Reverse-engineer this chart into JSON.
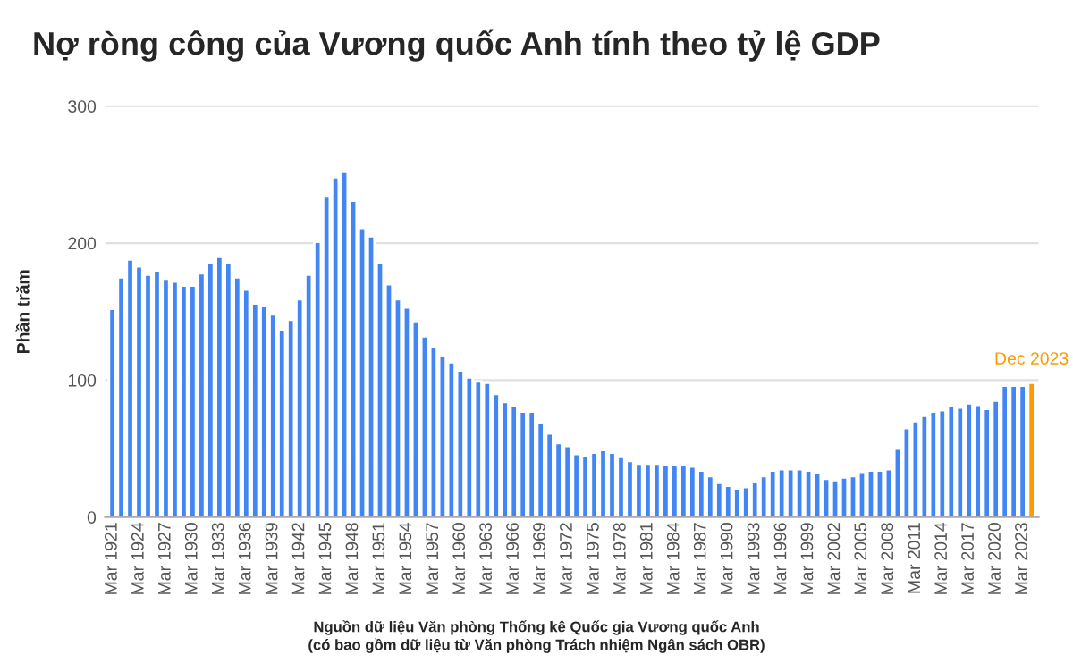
{
  "chart_data": {
    "type": "bar",
    "title": "Nợ ròng công của Vương quốc Anh tính theo tỷ lệ GDP",
    "ylabel": "Phần trăm",
    "categories": [
      "Mar 1921",
      null,
      null,
      "Mar 1924",
      null,
      null,
      "Mar 1927",
      null,
      null,
      "Mar 1930",
      null,
      null,
      "Mar 1933",
      null,
      null,
      "Mar 1936",
      null,
      null,
      "Mar 1939",
      null,
      null,
      "Mar 1942",
      null,
      null,
      "Mar 1945",
      null,
      null,
      "Mar 1948",
      null,
      null,
      "Mar 1951",
      null,
      null,
      "Mar 1954",
      null,
      null,
      "Mar 1957",
      null,
      null,
      "Mar 1960",
      null,
      null,
      "Mar 1963",
      null,
      null,
      "Mar 1966",
      null,
      null,
      "Mar 1969",
      null,
      null,
      "Mar 1972",
      null,
      null,
      "Mar 1975",
      null,
      null,
      "Mar 1978",
      null,
      null,
      "Mar 1981",
      null,
      null,
      "Mar 1984",
      null,
      null,
      "Mar 1987",
      null,
      null,
      "Mar 1990",
      null,
      null,
      "Mar 1993",
      null,
      null,
      "Mar 1996",
      null,
      null,
      "Mar 1999",
      null,
      null,
      "Mar 2002",
      null,
      null,
      "Mar 2005",
      null,
      null,
      "Mar 2008",
      null,
      null,
      "Mar 2011",
      null,
      null,
      "Mar 2014",
      null,
      null,
      "Mar 2017",
      null,
      null,
      "Mar 2020",
      null,
      null,
      "Mar 2023",
      null
    ],
    "values": [
      152,
      175,
      188,
      183,
      177,
      180,
      174,
      172,
      169,
      169,
      178,
      186,
      190,
      186,
      175,
      166,
      156,
      154,
      148,
      137,
      144,
      159,
      177,
      201,
      234,
      248,
      252,
      231,
      211,
      205,
      186,
      170,
      159,
      153,
      143,
      132,
      124,
      118,
      113,
      107,
      102,
      99,
      98,
      90,
      84,
      81,
      77,
      77,
      69,
      61,
      54,
      52,
      46,
      45,
      47,
      49,
      47,
      44,
      41,
      39,
      39,
      39,
      38,
      38,
      38,
      37,
      34,
      30,
      25,
      23,
      21,
      22,
      26,
      30,
      34,
      35,
      35,
      35,
      34,
      32,
      28,
      27,
      29,
      30,
      33,
      34,
      34,
      35,
      50,
      65,
      70,
      74,
      77,
      78,
      81,
      80,
      83,
      82,
      79,
      85,
      96,
      96,
      96,
      98
    ],
    "colors": [
      "#4285f4",
      "#4285f4",
      "#4285f4",
      "#4285f4",
      "#4285f4",
      "#4285f4",
      "#4285f4",
      "#4285f4",
      "#4285f4",
      "#4285f4",
      "#4285f4",
      "#4285f4",
      "#4285f4",
      "#4285f4",
      "#4285f4",
      "#4285f4",
      "#4285f4",
      "#4285f4",
      "#4285f4",
      "#4285f4",
      "#4285f4",
      "#4285f4",
      "#4285f4",
      "#4285f4",
      "#4285f4",
      "#4285f4",
      "#4285f4",
      "#4285f4",
      "#4285f4",
      "#4285f4",
      "#4285f4",
      "#4285f4",
      "#4285f4",
      "#4285f4",
      "#4285f4",
      "#4285f4",
      "#4285f4",
      "#4285f4",
      "#4285f4",
      "#4285f4",
      "#4285f4",
      "#4285f4",
      "#4285f4",
      "#4285f4",
      "#4285f4",
      "#4285f4",
      "#4285f4",
      "#4285f4",
      "#4285f4",
      "#4285f4",
      "#4285f4",
      "#4285f4",
      "#4285f4",
      "#4285f4",
      "#4285f4",
      "#4285f4",
      "#4285f4",
      "#4285f4",
      "#4285f4",
      "#4285f4",
      "#4285f4",
      "#4285f4",
      "#4285f4",
      "#4285f4",
      "#4285f4",
      "#4285f4",
      "#4285f4",
      "#4285f4",
      "#4285f4",
      "#4285f4",
      "#4285f4",
      "#4285f4",
      "#4285f4",
      "#4285f4",
      "#4285f4",
      "#4285f4",
      "#4285f4",
      "#4285f4",
      "#4285f4",
      "#4285f4",
      "#4285f4",
      "#4285f4",
      "#4285f4",
      "#4285f4",
      "#4285f4",
      "#4285f4",
      "#4285f4",
      "#4285f4",
      "#4285f4",
      "#4285f4",
      "#4285f4",
      "#4285f4",
      "#4285f4",
      "#4285f4",
      "#4285f4",
      "#4285f4",
      "#4285f4",
      "#4285f4",
      "#4285f4",
      "#4285f4",
      "#4285f4",
      "#4285f4",
      "#4285f4",
      "#ff9900"
    ],
    "ylim": [
      0,
      300
    ],
    "yticks": [
      0,
      100,
      200,
      300
    ],
    "grid": "y",
    "annotations": [
      {
        "text": "Dec 2023",
        "y": 98
      },
      "Nguồn dữ liệu Văn phòng Thống kê Quốc gia Vương quốc Anh\n(có bao gồm dữ liệu từ Văn phòng Trách nhiệm Ngân sách OBR)"
    ]
  }
}
